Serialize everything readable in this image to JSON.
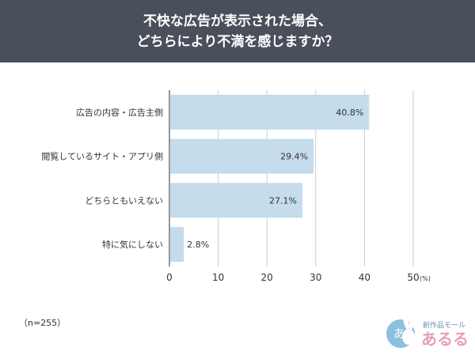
{
  "header": {
    "title_line1": "不快な広告が表示された場合、",
    "title_line2": "どちらにより不満を感じますか？"
  },
  "chart_data": {
    "type": "bar",
    "orientation": "horizontal",
    "categories": [
      "広告の内容・広告主側",
      "閲覧しているサイト・アプリ側",
      "どちらともいえない",
      "特に気にしない"
    ],
    "values": [
      40.8,
      29.4,
      27.1,
      2.8
    ],
    "value_labels": [
      "40.8%",
      "29.4%",
      "27.1%",
      "2.8%"
    ],
    "xlim": [
      0,
      50
    ],
    "xticks": [
      0,
      10,
      20,
      30,
      40,
      50
    ],
    "x_unit": "(%)",
    "grid": "vertical-lines",
    "bar_color": "#c4dcec",
    "grid_color": "#cccccc"
  },
  "footer": {
    "sample_note": "（n=255）",
    "brand_small": "創作品モール",
    "brand_name": "あるる"
  }
}
